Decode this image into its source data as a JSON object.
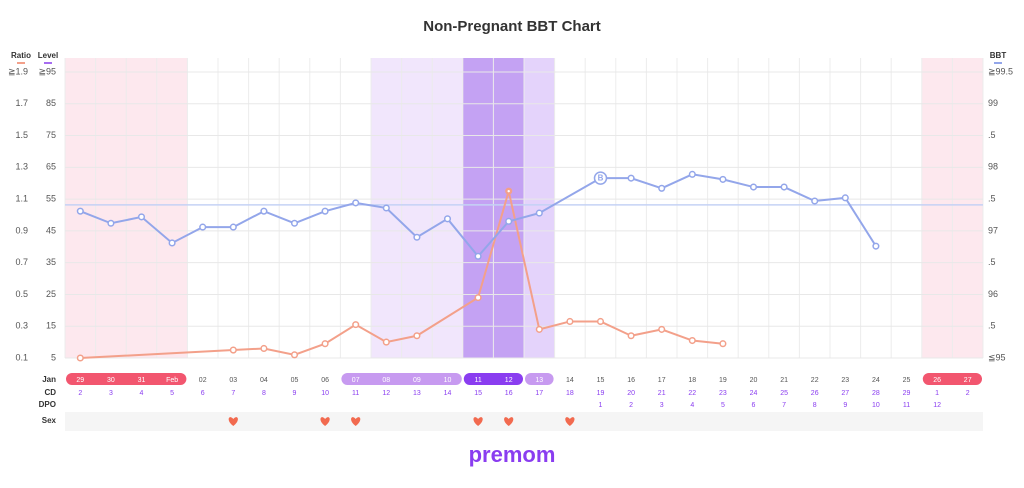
{
  "title": "Non-Pregnant BBT Chart",
  "logo": "premom",
  "chart_data": {
    "type": "line",
    "categories": [
      "29",
      "30",
      "31",
      "Feb",
      "02",
      "03",
      "04",
      "05",
      "06",
      "07",
      "08",
      "09",
      "10",
      "11",
      "12",
      "13",
      "14",
      "15",
      "16",
      "17",
      "18",
      "19",
      "20",
      "21",
      "22",
      "23",
      "24",
      "25",
      "26",
      "27"
    ],
    "month_label": "Jan",
    "cd_label": "CD",
    "cd": [
      2,
      3,
      4,
      5,
      6,
      7,
      8,
      9,
      10,
      11,
      12,
      13,
      14,
      15,
      16,
      17,
      18,
      19,
      20,
      21,
      22,
      23,
      24,
      25,
      26,
      27,
      28,
      29,
      1,
      2
    ],
    "dpo_label": "DPO",
    "dpo": [
      null,
      null,
      null,
      null,
      null,
      null,
      null,
      null,
      null,
      null,
      null,
      null,
      null,
      null,
      null,
      null,
      null,
      1,
      2,
      3,
      4,
      5,
      6,
      7,
      8,
      9,
      10,
      11,
      12,
      null
    ],
    "sex_label": "Sex",
    "sex": [
      false,
      false,
      false,
      false,
      false,
      true,
      false,
      false,
      true,
      true,
      false,
      false,
      false,
      true,
      true,
      false,
      true,
      false,
      false,
      false,
      false,
      false,
      false,
      false,
      false,
      false,
      false,
      false,
      false,
      false
    ],
    "ylim": [
      0.1,
      1.9
    ],
    "yticks": [
      0.1,
      0.3,
      0.5,
      0.7,
      0.9,
      1.1,
      1.3,
      1.5,
      1.7,
      {
        "value": 1.9,
        "label": "≧1.9"
      }
    ],
    "level_label": "Level",
    "level_color": "#a66cf0",
    "level_lim": [
      5,
      95
    ],
    "level_ticks": [
      5,
      15,
      25,
      35,
      45,
      55,
      65,
      75,
      85,
      {
        "value": 95,
        "label": "≧95"
      }
    ],
    "y2lim": [
      95,
      99.5
    ],
    "y2ticks": [
      {
        "value": 95,
        "label": "≦95"
      },
      {
        "value": 95.5,
        "label": ".5"
      },
      96,
      {
        "value": 96.5,
        "label": ".5"
      },
      97,
      {
        "value": 97.5,
        "label": ".5"
      },
      98,
      {
        "value": 98.5,
        "label": ".5"
      },
      99,
      {
        "value": 99.5,
        "label": "≧99.5"
      }
    ],
    "cover_line": 97.41,
    "grid": true,
    "series": [
      {
        "name": "Ratio",
        "color": "#f3a08a",
        "x": [
          "29",
          "03",
          "04",
          "05",
          "06",
          "07",
          "08",
          "09",
          "11",
          "12",
          "13",
          "14",
          "15",
          "16",
          "17",
          "18",
          "19"
        ],
        "values": [
          0.1,
          0.15,
          0.16,
          0.12,
          0.19,
          0.31,
          0.2,
          0.24,
          0.48,
          1.15,
          0.28,
          0.33,
          0.33,
          0.24,
          0.28,
          0.21,
          0.19
        ]
      },
      {
        "name": "BBT",
        "axis": "y2",
        "color": "#93a6ea",
        "x": [
          "29",
          "30",
          "31",
          "Feb",
          "02",
          "03",
          "04",
          "05",
          "06",
          "07",
          "08",
          "09",
          "10",
          "11",
          "12",
          "13",
          "15",
          "16",
          "17",
          "18",
          "19",
          "20",
          "21",
          "22",
          "23",
          "24"
        ],
        "values": [
          97.31,
          97.12,
          97.22,
          96.81,
          97.06,
          97.06,
          97.31,
          97.12,
          97.31,
          97.44,
          97.36,
          96.9,
          97.19,
          96.6,
          97.15,
          97.28,
          97.83,
          97.83,
          97.67,
          97.89,
          97.81,
          97.69,
          97.69,
          97.47,
          97.52,
          96.76
        ],
        "marker": {
          "x": "15",
          "label": "B"
        }
      }
    ]
  }
}
